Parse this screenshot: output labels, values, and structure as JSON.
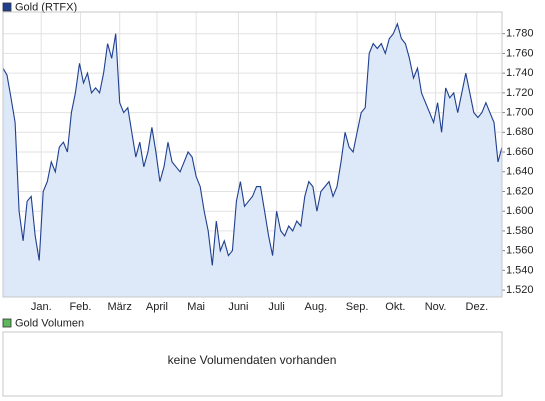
{
  "chart_data": {
    "type": "area",
    "series": [
      {
        "name": "Gold (RTFX)",
        "color": "#1f3f8f",
        "fill": "#dde8f8",
        "values": [
          1745,
          1738,
          1715,
          1690,
          1600,
          1570,
          1610,
          1615,
          1575,
          1550,
          1620,
          1630,
          1650,
          1640,
          1665,
          1670,
          1660,
          1700,
          1720,
          1750,
          1730,
          1740,
          1720,
          1725,
          1720,
          1740,
          1770,
          1755,
          1780,
          1710,
          1700,
          1705,
          1680,
          1655,
          1670,
          1645,
          1660,
          1685,
          1660,
          1630,
          1645,
          1670,
          1650,
          1645,
          1640,
          1650,
          1660,
          1655,
          1635,
          1625,
          1600,
          1580,
          1545,
          1590,
          1560,
          1570,
          1555,
          1560,
          1610,
          1630,
          1605,
          1610,
          1615,
          1625,
          1625,
          1600,
          1575,
          1555,
          1600,
          1580,
          1575,
          1585,
          1580,
          1590,
          1585,
          1615,
          1630,
          1625,
          1600,
          1620,
          1625,
          1630,
          1615,
          1625,
          1650,
          1680,
          1665,
          1660,
          1680,
          1700,
          1705,
          1760,
          1770,
          1765,
          1770,
          1760,
          1775,
          1780,
          1790,
          1775,
          1770,
          1755,
          1735,
          1745,
          1720,
          1710,
          1700,
          1690,
          1710,
          1680,
          1725,
          1715,
          1720,
          1700,
          1720,
          1740,
          1720,
          1700,
          1695,
          1700,
          1710,
          1700,
          1690,
          1650,
          1665
        ]
      }
    ],
    "xlim": [
      0,
      124
    ],
    "xticks": [
      {
        "value": 9.5,
        "label": "Jan."
      },
      {
        "value": 19.25,
        "label": "Feb."
      },
      {
        "value": 29,
        "label": "März"
      },
      {
        "value": 38.25,
        "label": "April"
      },
      {
        "value": 48,
        "label": "Mai"
      },
      {
        "value": 58.5,
        "label": "Juni"
      },
      {
        "value": 68,
        "label": "Juli"
      },
      {
        "value": 77.75,
        "label": "Aug."
      },
      {
        "value": 88,
        "label": "Sep."
      },
      {
        "value": 97.5,
        "label": "Okt."
      },
      {
        "value": 107.5,
        "label": "Nov."
      },
      {
        "value": 117.75,
        "label": "Dez."
      }
    ],
    "ylim": [
      1513,
      1802
    ],
    "yticks": [
      {
        "value": 1520,
        "label": "1.520"
      },
      {
        "value": 1540,
        "label": "1.540"
      },
      {
        "value": 1560,
        "label": "1.560"
      },
      {
        "value": 1580,
        "label": "1.580"
      },
      {
        "value": 1600,
        "label": "1.600"
      },
      {
        "value": 1620,
        "label": "1.620"
      },
      {
        "value": 1640,
        "label": "1.640"
      },
      {
        "value": 1660,
        "label": "1.660"
      },
      {
        "value": 1680,
        "label": "1.680"
      },
      {
        "value": 1700,
        "label": "1.700"
      },
      {
        "value": 1720,
        "label": "1.720"
      },
      {
        "value": 1740,
        "label": "1.740"
      },
      {
        "value": 1760,
        "label": "1.760"
      },
      {
        "value": 1780,
        "label": "1.780"
      }
    ],
    "grid": true
  },
  "volume_panel": {
    "legend": "Gold Volumen",
    "color": "#5cb85c",
    "message": "keine Volumendaten vorhanden"
  }
}
